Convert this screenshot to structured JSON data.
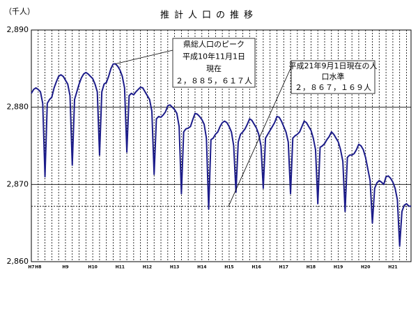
{
  "chart_data": {
    "type": "line",
    "title": "推計人口の推移",
    "y_unit": "（千人）",
    "categories": [
      "H7",
      null,
      null,
      "H8",
      null,
      null,
      null,
      null,
      null,
      null,
      null,
      null,
      null,
      null,
      null,
      "H9",
      null,
      null,
      null,
      null,
      null,
      null,
      null,
      null,
      null,
      null,
      null,
      "H10",
      null,
      null,
      null,
      null,
      null,
      null,
      null,
      null,
      null,
      null,
      null,
      "H11",
      null,
      null,
      null,
      null,
      null,
      null,
      null,
      null,
      null,
      null,
      null,
      "H12",
      null,
      null,
      null,
      null,
      null,
      null,
      null,
      null,
      null,
      null,
      null,
      "H13",
      null,
      null,
      null,
      null,
      null,
      null,
      null,
      null,
      null,
      null,
      null,
      "H14",
      null,
      null,
      null,
      null,
      null,
      null,
      null,
      null,
      null,
      null,
      null,
      "H15",
      null,
      null,
      null,
      null,
      null,
      null,
      null,
      null,
      null,
      null,
      null,
      "H16",
      null,
      null,
      null,
      null,
      null,
      null,
      null,
      null,
      null,
      null,
      null,
      "H17",
      null,
      null,
      null,
      null,
      null,
      null,
      null,
      null,
      null,
      null,
      null,
      "H18",
      null,
      null,
      null,
      null,
      null,
      null,
      null,
      null,
      null,
      null,
      null,
      "H19",
      null,
      null,
      null,
      null,
      null,
      null,
      null,
      null,
      null,
      null,
      null,
      "H20",
      null,
      null,
      null,
      null,
      null,
      null,
      null,
      null,
      null,
      null,
      null,
      "H21",
      null,
      null,
      null,
      null,
      null,
      null,
      null,
      null
    ],
    "series": [
      {
        "name": "推計人口",
        "color": "#1c1c8a",
        "values": [
          2881.8,
          2882.3,
          2882.5,
          2882.3,
          2882.0,
          2880.5,
          2871.0,
          2880.5,
          2881.0,
          2881.3,
          2882.5,
          2883.3,
          2884.0,
          2884.2,
          2884.0,
          2883.5,
          2883.0,
          2881.5,
          2872.5,
          2881.0,
          2882.0,
          2883.0,
          2883.8,
          2884.3,
          2884.5,
          2884.3,
          2884.0,
          2883.7,
          2883.0,
          2882.0,
          2873.8,
          2882.0,
          2883.0,
          2883.2,
          2884.0,
          2885.0,
          2885.6,
          2885.617,
          2885.3,
          2884.8,
          2884.0,
          2882.5,
          2874.2,
          2881.5,
          2881.8,
          2881.6,
          2882.0,
          2882.3,
          2882.6,
          2882.5,
          2882.0,
          2881.5,
          2881.0,
          2879.5,
          2871.3,
          2878.5,
          2878.8,
          2878.7,
          2879.0,
          2879.4,
          2880.2,
          2880.3,
          2880.0,
          2879.7,
          2879.2,
          2877.5,
          2868.8,
          2876.8,
          2877.2,
          2877.3,
          2877.5,
          2878.4,
          2879.2,
          2879.1,
          2878.8,
          2878.4,
          2877.8,
          2876.0,
          2866.8,
          2875.8,
          2876.0,
          2876.5,
          2876.8,
          2877.5,
          2878.0,
          2878.2,
          2878.0,
          2877.5,
          2876.8,
          2875.0,
          2869.0,
          2875.5,
          2876.5,
          2876.8,
          2877.2,
          2877.8,
          2878.5,
          2878.3,
          2877.8,
          2877.3,
          2876.5,
          2875.0,
          2869.5,
          2876.0,
          2876.5,
          2877.0,
          2877.5,
          2878.0,
          2878.8,
          2878.7,
          2878.2,
          2877.5,
          2876.8,
          2875.5,
          2868.8,
          2876.0,
          2876.3,
          2876.5,
          2876.8,
          2877.5,
          2878.2,
          2878.0,
          2877.5,
          2877.0,
          2876.0,
          2874.5,
          2867.5,
          2874.8,
          2875.0,
          2875.3,
          2875.8,
          2876.2,
          2876.8,
          2876.5,
          2876.0,
          2875.5,
          2874.5,
          2873.0,
          2866.5,
          2873.5,
          2873.8,
          2873.8,
          2874.0,
          2874.5,
          2875.2,
          2875.0,
          2874.5,
          2873.5,
          2872.0,
          2870.5,
          2865.0,
          2869.5,
          2870.2,
          2870.5,
          2870.3,
          2870.0,
          2871.0,
          2871.1,
          2870.8,
          2870.3,
          2869.5,
          2868.0,
          2862.0,
          2866.5,
          2867.3,
          2867.5,
          2867.2,
          2867.169
        ]
      }
    ],
    "ylim": [
      2860,
      2890
    ],
    "yticks": [
      {
        "value": 2860,
        "label": "2,860"
      },
      {
        "value": 2870,
        "label": "2,870"
      },
      {
        "value": 2880,
        "label": "2,880"
      },
      {
        "value": 2890,
        "label": "2,890"
      }
    ],
    "grid": true,
    "reference_value": 2867.169,
    "annotations": [
      {
        "lines": [
          "県総人口のピーク",
          "平成10年11月1日",
          "現在",
          "２，８８５，６１７人"
        ]
      },
      {
        "lines": [
          "平成21年9月1日現在の人",
          "口水準",
          "２，８６７，１６９人"
        ]
      }
    ]
  }
}
